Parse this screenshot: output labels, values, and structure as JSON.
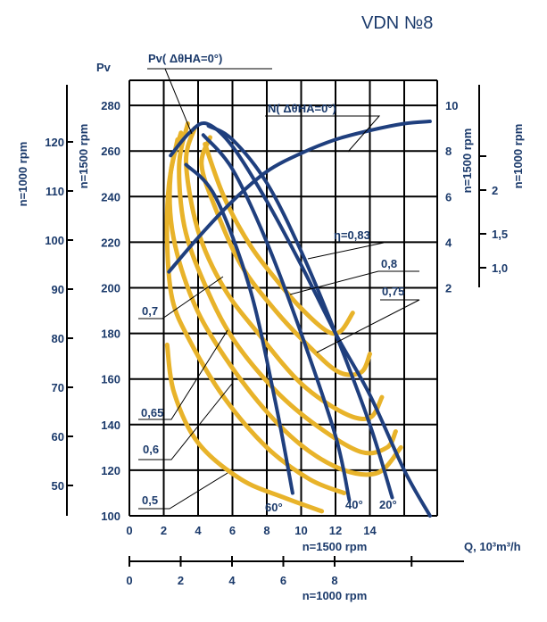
{
  "title": "VDN №8",
  "chart_data": {
    "type": "line",
    "title": "VDN №8",
    "y_main_label": "Pv",
    "y_main_ticks": [
      "100",
      "120",
      "140",
      "160",
      "180",
      "200",
      "220",
      "240",
      "260",
      "280"
    ],
    "y_left_1500_label": "n=1500 rpm",
    "y_left_1500_ticks": [
      "50",
      "60",
      "70",
      "80",
      "90",
      "100",
      "110",
      "120"
    ],
    "y_left_1000_label": "n=1000 rpm",
    "y_right_1500_label": "n=1500 rpm",
    "y_right_1500_ticks": [
      "2",
      "4",
      "6",
      "8",
      "10"
    ],
    "y_right_1000_label": "n=1000 rpm",
    "y_right_1000_ticks": [
      "1,0",
      "1,5",
      "2"
    ],
    "x_main_ticks": [
      "0",
      "2",
      "4",
      "6",
      "8",
      "10",
      "12",
      "14"
    ],
    "x_main_label": "n=1500 rpm",
    "x_1000_ticks": [
      "0",
      "2",
      "4",
      "6",
      "8"
    ],
    "x_1000_label": "n=1000 rpm",
    "q_label": "Q, 10³m³/h",
    "labels": {
      "pv_curve": "Pv( ΔθНА=0°)",
      "n_curve": "N( ΔθНА=0°)",
      "eff_083": "η=0,83",
      "eff_08": "0,8",
      "eff_075": "0,75",
      "eff_07": "0,7",
      "eff_065": "0,65",
      "eff_06": "0,6",
      "eff_05": "0,5",
      "angle_60": "60°",
      "angle_40": "40°",
      "angle_20": "20°"
    },
    "series": [
      {
        "name": "Pv( ΔθНА=0°)",
        "color": "#1f3f7e",
        "x": [
          2.4,
          3.5,
          4.5,
          6.0,
          8.0,
          10.0,
          12.0,
          14.0,
          16.0,
          17.5
        ],
        "y": [
          258,
          268,
          272,
          262,
          238,
          210,
          180,
          153,
          120,
          100
        ]
      },
      {
        "name": "N( ΔθНА=0°)",
        "color": "#1f3f7e",
        "x": [
          2.3,
          4.0,
          6.0,
          8.0,
          10.0,
          12.0,
          14.0,
          16.0,
          17.5
        ],
        "y": [
          207,
          222,
          238,
          251,
          259,
          265,
          269,
          272,
          273
        ]
      },
      {
        "name": "60°",
        "color": "#1f3f7e",
        "x": [
          3.3,
          5.0,
          7.0,
          8.5,
          9.5
        ],
        "y": [
          254,
          240,
          200,
          150,
          110
        ]
      },
      {
        "name": "40°",
        "color": "#1f3f7e",
        "x": [
          4.3,
          6.0,
          8.0,
          10.0,
          12.0,
          12.8
        ],
        "y": [
          267,
          252,
          220,
          180,
          135,
          107
        ]
      },
      {
        "name": "20°",
        "color": "#1f3f7e",
        "x": [
          4.6,
          6.0,
          8.0,
          10.0,
          12.0,
          14.0,
          15.3
        ],
        "y": [
          271,
          265,
          246,
          216,
          180,
          140,
          108
        ]
      },
      {
        "name": "0,83",
        "color": "#e8b32a",
        "x": [
          4.4,
          5.5,
          7.0,
          8.5,
          10.0,
          11.5,
          12.3,
          13.0
        ],
        "y": [
          263,
          240,
          219,
          204,
          191,
          181,
          181,
          189
        ]
      },
      {
        "name": "0,8",
        "color": "#e8b32a",
        "x": [
          4.7,
          4.2,
          5.0,
          6.5,
          8.5,
          10.5,
          12.2,
          13.5,
          14.0
        ],
        "y": [
          266,
          254,
          235,
          210,
          190,
          174,
          163,
          163,
          171
        ]
      },
      {
        "name": "0,75",
        "color": "#e8b32a",
        "x": [
          3.8,
          3.3,
          4.0,
          5.5,
          7.5,
          10.0,
          12.5,
          14.0,
          14.7
        ],
        "y": [
          270,
          255,
          225,
          200,
          180,
          158,
          145,
          143,
          152
        ]
      },
      {
        "name": "0,7",
        "color": "#e8b32a",
        "x": [
          3.4,
          2.9,
          3.2,
          4.3,
          6.0,
          8.5,
          11.0,
          13.5,
          15.0,
          15.5
        ],
        "y": [
          272,
          254,
          227,
          203,
          178,
          155,
          139,
          128,
          130,
          137
        ]
      },
      {
        "name": "0,65",
        "color": "#e8b32a",
        "x": [
          3.0,
          2.4,
          2.5,
          3.5,
          5.0,
          7.5,
          10.0,
          12.5,
          14.5,
          15.8
        ],
        "y": [
          268,
          250,
          225,
          198,
          176,
          150,
          131,
          120,
          119,
          130
        ]
      },
      {
        "name": "0,6",
        "color": "#e8b32a",
        "x": [
          2.8,
          2.3,
          2.2,
          2.5,
          3.5,
          5.5,
          8.0,
          10.5,
          12.5
        ],
        "y": [
          265,
          245,
          220,
          195,
          177,
          152,
          130,
          116,
          110
        ]
      },
      {
        "name": "0,5",
        "color": "#e8b32a",
        "x": [
          2.2,
          2.6,
          4.0,
          6.5,
          9.0,
          11.2
        ],
        "y": [
          175,
          154,
          132,
          116,
          108,
          102
        ]
      }
    ]
  }
}
